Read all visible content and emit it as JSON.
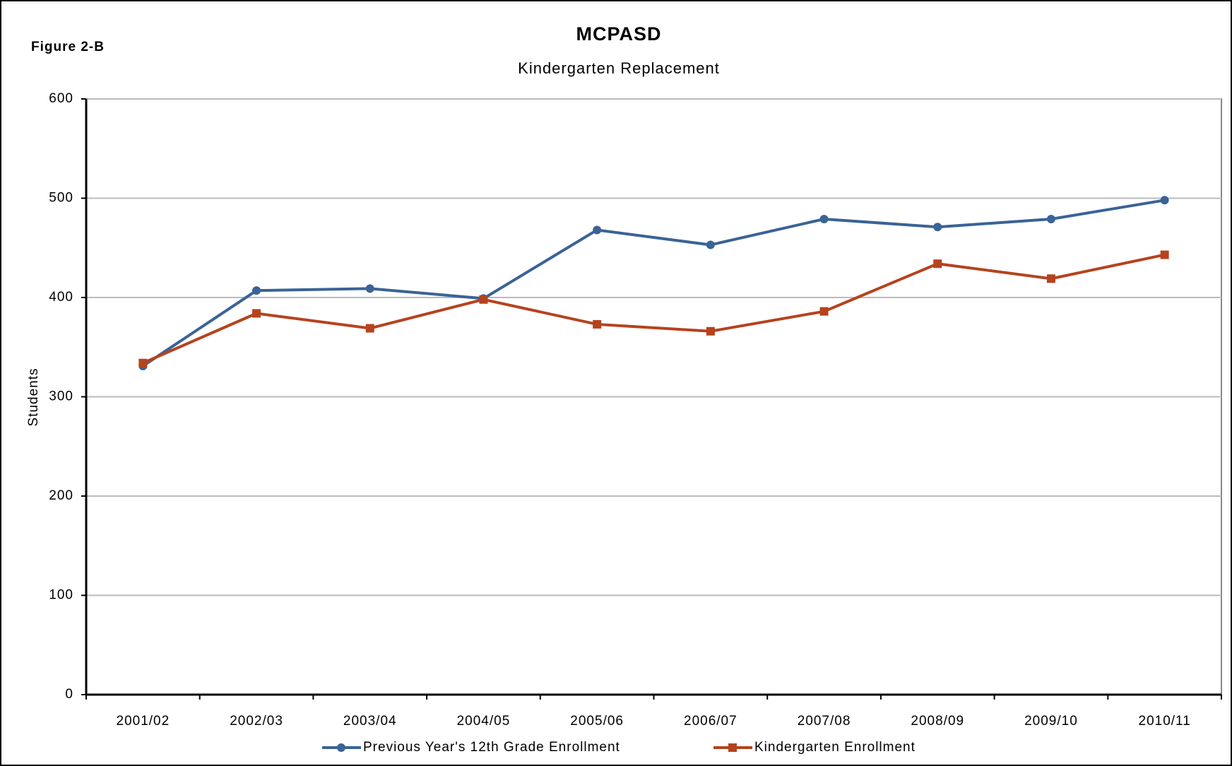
{
  "figure_label": "Figure 2-B",
  "chart_data": {
    "type": "line",
    "title": "MCPASD",
    "subtitle": "Kindergarten Replacement",
    "y_label": "Students",
    "categories": [
      "2001/02",
      "2002/03",
      "2003/04",
      "2004/05",
      "2005/06",
      "2006/07",
      "2007/08",
      "2008/09",
      "2009/10",
      "2010/11"
    ],
    "series": [
      {
        "name": "Previous Year's 12th Grade Enrollment",
        "color": "#3a6396",
        "values": [
          331,
          407,
          409,
          399,
          468,
          453,
          479,
          471,
          479,
          498
        ]
      },
      {
        "name": "Kindergarten Enrollment",
        "color": "#b5431e",
        "values": [
          334,
          384,
          369,
          398,
          373,
          366,
          386,
          434,
          419,
          443
        ]
      }
    ],
    "ylim": [
      0,
      600
    ],
    "yticks": [
      0,
      100,
      200,
      300,
      400,
      500,
      600
    ],
    "grid": true,
    "legend": "bottom"
  }
}
